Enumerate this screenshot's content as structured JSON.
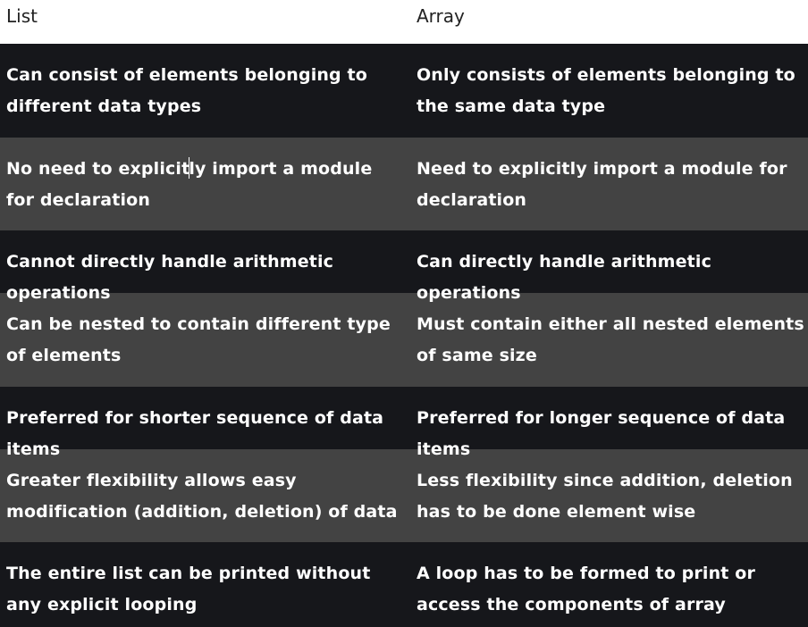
{
  "table": {
    "headers": [
      "List",
      "Array"
    ],
    "rows": [
      [
        "Can consist of elements belonging to different data types",
        "Only consists of elements belonging to the same data type"
      ],
      [
        "No need to explicitly import a module for declaration",
        "Need to explicitly import a module for declaration"
      ],
      [
        "Cannot directly handle arithmetic operations",
        "Can directly handle arithmetic operations"
      ],
      [
        "Can be nested to contain different type of elements",
        "Must contain either all nested elements of same size"
      ],
      [
        "Preferred for shorter sequence of data items",
        "Preferred for longer sequence of data items"
      ],
      [
        "Greater flexibility allows easy modification (addition, deletion) of data",
        "Less flexibility since addition, deletion has to be done element wise"
      ],
      [
        "The entire list can be printed without any explicit looping",
        "A loop has to be formed to print or access the components of array"
      ]
    ]
  },
  "split_text": {
    "row1_col1_before_caret": "No need to explicit",
    "row1_col1_after_caret": "ly import a module for declaration"
  },
  "colors": {
    "header_bg": "#ffffff",
    "header_text": "#222222",
    "row_dark": "#16171b",
    "row_light": "#434343",
    "cell_text": "#ffffff"
  }
}
